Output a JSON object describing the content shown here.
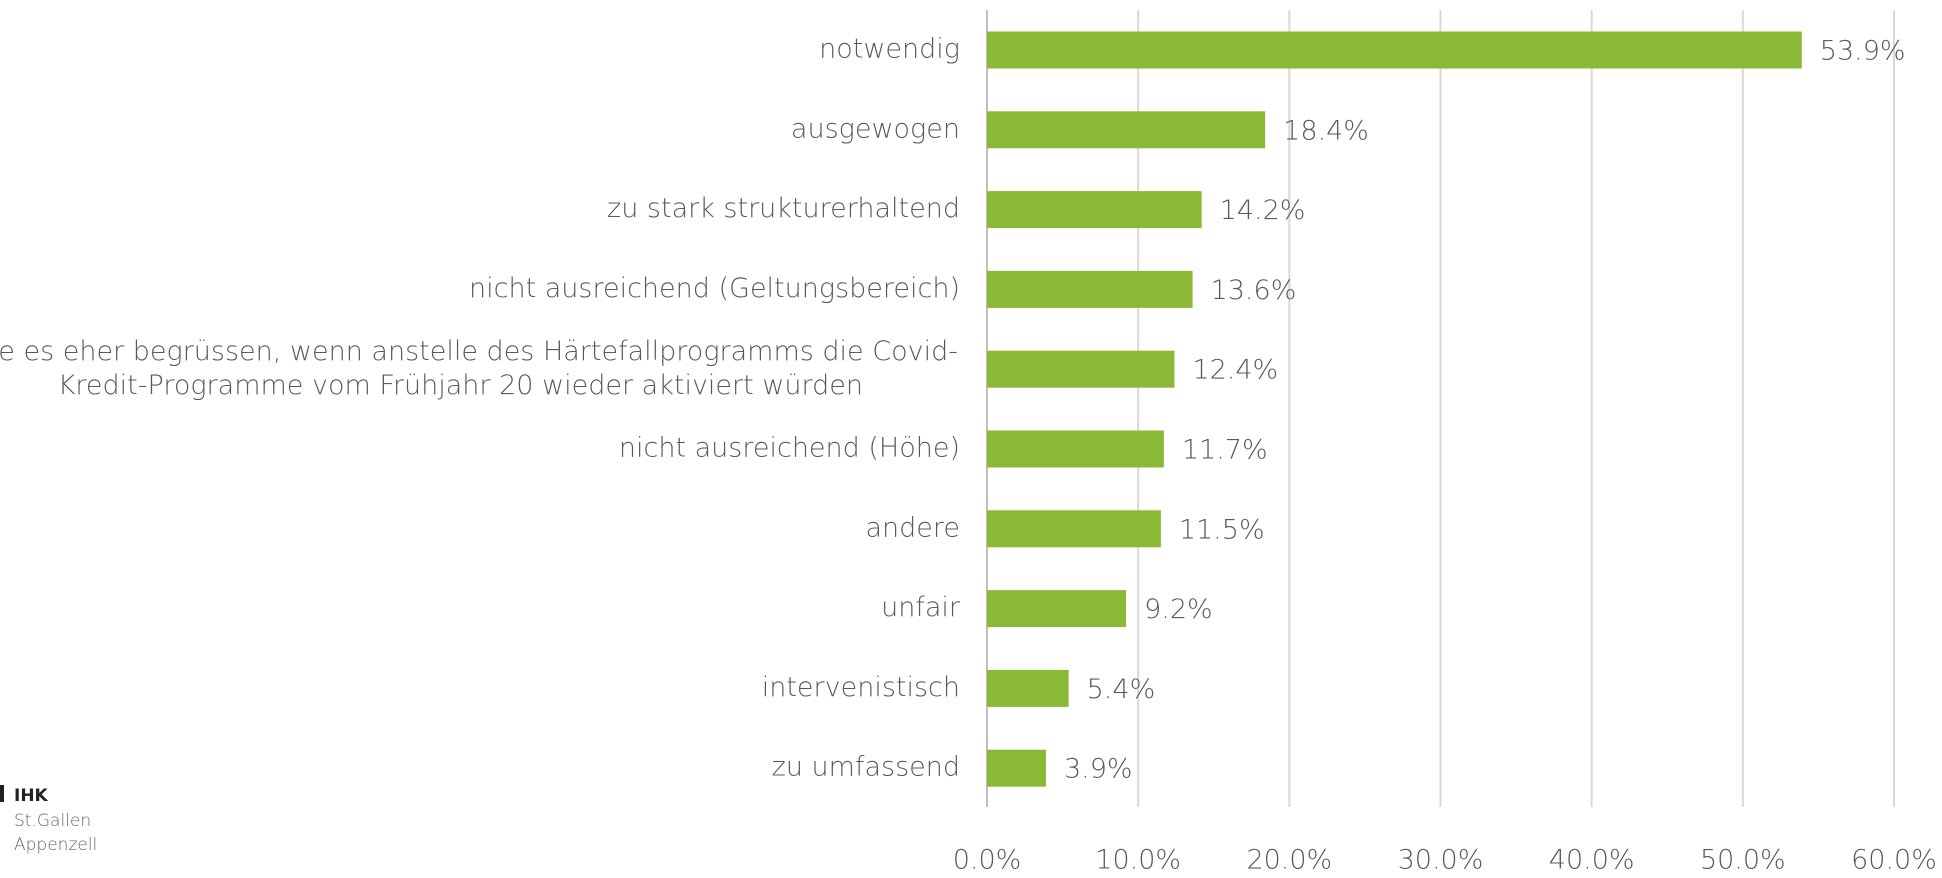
{
  "chart_data": {
    "type": "barh",
    "categories": [
      "notwendig",
      "ausgewogen",
      "zu stark strukturerhaltend",
      "nicht ausreichend (Geltungsbereich)",
      "würde es eher begrüssen, wenn anstelle des Härtefallprogramms die Covid-\nKredit-Programme vom Frühjahr 20 wieder aktiviert würden",
      "nicht ausreichend (Höhe)",
      "andere",
      "unfair",
      "intervenistisch",
      "zu umfassend"
    ],
    "values": [
      53.9,
      18.4,
      14.2,
      13.6,
      12.4,
      11.7,
      11.5,
      9.2,
      5.4,
      3.9
    ],
    "value_labels": [
      "53.9%",
      "18.4%",
      "14.2%",
      "13.6%",
      "12.4%",
      "11.7%",
      "11.5%",
      "9.2%",
      "5.4%",
      "3.9%"
    ],
    "color": "#8aba35",
    "xlim": [
      0,
      60
    ],
    "xticks": [
      {
        "value": 0,
        "label": "0.0%"
      },
      {
        "value": 10,
        "label": "10.0%"
      },
      {
        "value": 20,
        "label": "20.0%"
      },
      {
        "value": 30,
        "label": "30.0%"
      },
      {
        "value": 40,
        "label": "40.0%"
      },
      {
        "value": 50,
        "label": "50.0%"
      },
      {
        "value": 60,
        "label": "60.0%"
      }
    ],
    "grid": true
  },
  "logo": [
    "IHK",
    "St.Gallen",
    "Appenzell"
  ]
}
